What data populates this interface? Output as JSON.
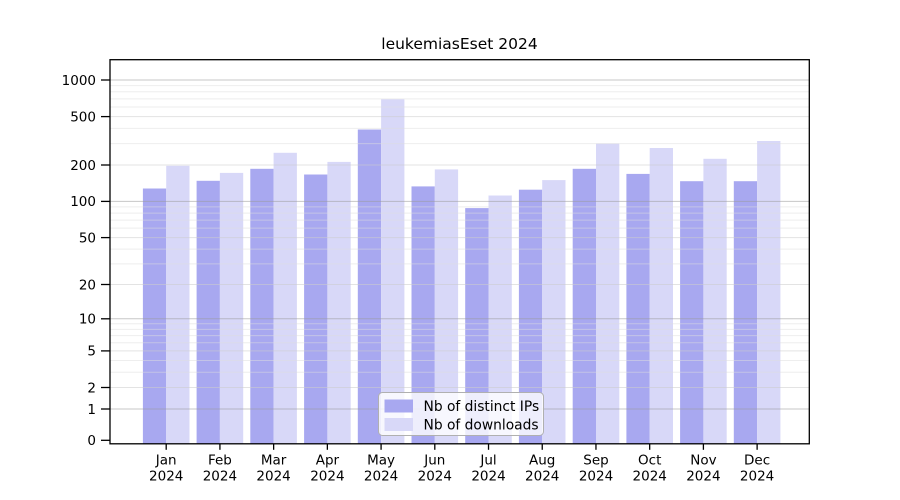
{
  "title": "leukemiasEset 2024",
  "chart_data": {
    "type": "bar",
    "title": "leukemiasEset 2024",
    "categories": [
      "Jan",
      "Feb",
      "Mar",
      "Apr",
      "May",
      "Jun",
      "Jul",
      "Aug",
      "Sep",
      "Oct",
      "Nov",
      "Dec"
    ],
    "year_label": "2024",
    "series": [
      {
        "name": "Nb of distinct IPs",
        "color": "#a8a8f0",
        "values": [
          128,
          148,
          186,
          167,
          392,
          133,
          88,
          125,
          186,
          169,
          147,
          147
        ]
      },
      {
        "name": "Nb of downloads",
        "color": "#d8d8f8",
        "values": [
          197,
          172,
          252,
          212,
          695,
          184,
          112,
          150,
          300,
          276,
          225,
          315
        ]
      }
    ],
    "y_axis": {
      "scale": "log1p",
      "ticks": [
        0,
        1,
        2,
        5,
        10,
        20,
        50,
        100,
        200,
        500,
        1000
      ],
      "range": [
        0,
        1000
      ],
      "decade_gridlines": [
        1,
        10,
        100,
        1000
      ],
      "mid_gridlines": [
        2,
        5,
        20,
        50,
        200,
        500
      ],
      "minor_gridlines": [
        3,
        4,
        6,
        7,
        8,
        9,
        30,
        40,
        60,
        70,
        80,
        90,
        300,
        400,
        600,
        700,
        800,
        900
      ]
    },
    "grid": true,
    "legend_position": "inside-bottom-center",
    "colors": {
      "axis": "#000000",
      "decade_grid": "#999999",
      "mid_grid": "#cccccc",
      "minor_grid": "#dedede",
      "legend_border": "#b0b0b0",
      "legend_bg": "#ffffff"
    }
  }
}
